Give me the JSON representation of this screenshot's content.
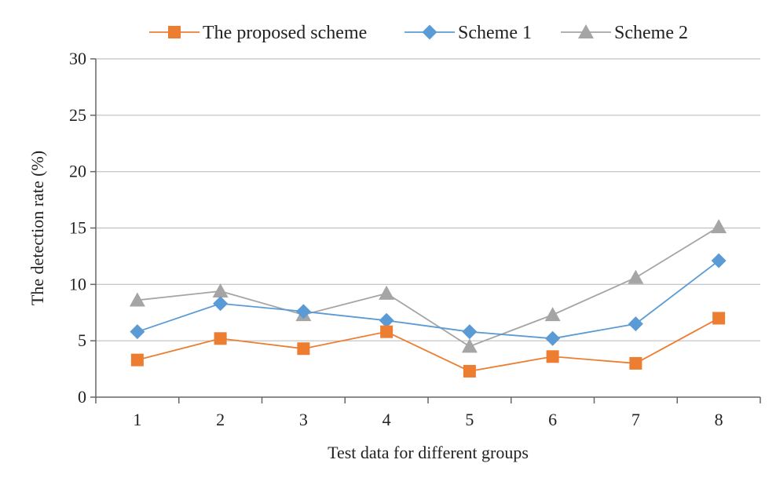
{
  "chart_data": {
    "type": "line",
    "title": "",
    "xlabel": "Test data for different groups",
    "ylabel": "The detection rate (%)",
    "categories": [
      "1",
      "2",
      "3",
      "4",
      "5",
      "6",
      "7",
      "8"
    ],
    "ylim": [
      0,
      30
    ],
    "yticks": [
      "0",
      "5",
      "10",
      "15",
      "20",
      "25",
      "30"
    ],
    "grid": "horizontal",
    "legend_position": "top",
    "series": [
      {
        "name": "The proposed scheme",
        "marker": "square",
        "color": "#ED7D31",
        "values": [
          3.3,
          5.2,
          4.3,
          5.8,
          2.3,
          3.6,
          3.0,
          7.0
        ]
      },
      {
        "name": "Scheme 1",
        "marker": "diamond",
        "color": "#5B9BD5",
        "values": [
          5.8,
          8.3,
          7.6,
          6.8,
          5.8,
          5.2,
          6.5,
          12.1
        ]
      },
      {
        "name": "Scheme 2",
        "marker": "triangle",
        "color": "#A5A5A5",
        "values": [
          8.6,
          9.4,
          7.3,
          9.2,
          4.5,
          7.3,
          10.6,
          15.1
        ]
      }
    ]
  }
}
